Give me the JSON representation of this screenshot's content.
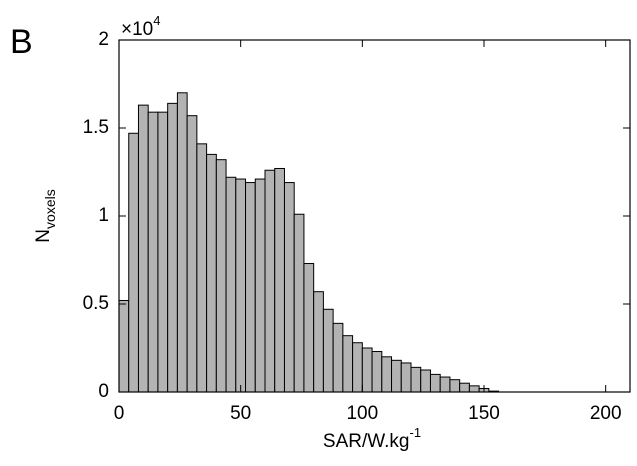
{
  "chart_data": {
    "type": "histogram",
    "panel_label": "B",
    "x_label": "SAR/W.kg",
    "x_label_sup": "-1",
    "y_label": "N",
    "y_label_sub": "voxels",
    "y_multiplier": "×10",
    "y_multiplier_exp": "4",
    "bins": [
      0,
      4,
      8,
      12,
      16,
      20,
      24,
      28,
      32,
      36,
      40,
      44,
      48,
      52,
      56,
      60,
      64,
      68,
      72,
      76,
      80,
      84,
      88,
      92,
      96,
      100,
      104,
      108,
      112,
      116,
      120,
      124,
      128,
      132,
      136,
      140,
      144,
      148,
      152,
      156
    ],
    "values": [
      0.52,
      1.47,
      1.63,
      1.59,
      1.59,
      1.64,
      1.7,
      1.57,
      1.41,
      1.35,
      1.32,
      1.22,
      1.21,
      1.19,
      1.21,
      1.26,
      1.27,
      1.19,
      1.01,
      0.73,
      0.57,
      0.47,
      0.39,
      0.32,
      0.28,
      0.25,
      0.23,
      0.2,
      0.18,
      0.165,
      0.14,
      0.125,
      0.1,
      0.085,
      0.07,
      0.05,
      0.035,
      0.02,
      0.005
    ],
    "color": "#b3b3b3",
    "xlim": [
      0,
      210
    ],
    "xticks": [
      0,
      50,
      100,
      150,
      200
    ],
    "ylim": [
      0,
      2
    ],
    "yticks": [
      0,
      0.5,
      1,
      1.5,
      2
    ],
    "grid": false
  }
}
